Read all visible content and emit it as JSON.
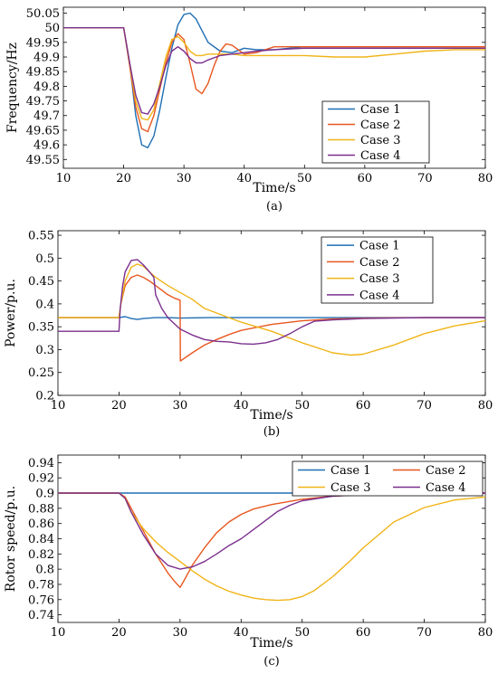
{
  "colors": {
    "case1": "#1f6fb5",
    "case2": "#e8571f",
    "case3": "#f0b418",
    "case4": "#7b2f8e"
  },
  "chart_data": [
    {
      "type": "line",
      "caption": "(a)",
      "xlabel": "Time/s",
      "ylabel": "Frequency/Hz",
      "xlim": [
        10,
        80
      ],
      "ylim": [
        49.52,
        50.07
      ],
      "xticks": [
        10,
        20,
        30,
        40,
        50,
        60,
        70,
        80
      ],
      "yticks": [
        49.55,
        49.6,
        49.65,
        49.7,
        49.75,
        49.8,
        49.85,
        49.9,
        49.95,
        50,
        50.05
      ],
      "yticklabels": [
        "49.55",
        "49.6",
        "49.65",
        "49.7",
        "49.75",
        "49.8",
        "49.85",
        "49.9",
        "49.95",
        "50",
        "50.05"
      ],
      "legend": {
        "placement": "bottom-right",
        "columns": 1,
        "entries": [
          "Case 1",
          "Case 2",
          "Case 3",
          "Case 4"
        ]
      },
      "series": [
        {
          "name": "Case 1",
          "color_key": "case1",
          "x": [
            10,
            20,
            21,
            22,
            23,
            24,
            25,
            26,
            27,
            28,
            29,
            30,
            31,
            32,
            33,
            34,
            36,
            38,
            40,
            42,
            45,
            50,
            60,
            70,
            80
          ],
          "y": [
            50,
            50,
            49.88,
            49.7,
            49.6,
            49.59,
            49.63,
            49.72,
            49.83,
            49.93,
            50.01,
            50.045,
            50.05,
            50.03,
            49.99,
            49.95,
            49.92,
            49.915,
            49.93,
            49.925,
            49.925,
            49.935,
            49.935,
            49.935,
            49.935
          ]
        },
        {
          "name": "Case 2",
          "color_key": "case2",
          "x": [
            10,
            20,
            21,
            22,
            23,
            24,
            25,
            26,
            27,
            28,
            29,
            30,
            31,
            32,
            33,
            34,
            35,
            36,
            37,
            38,
            40,
            42,
            45,
            50,
            60,
            70,
            80
          ],
          "y": [
            50,
            50,
            49.87,
            49.73,
            49.655,
            49.645,
            49.7,
            49.79,
            49.88,
            49.95,
            49.98,
            49.96,
            49.88,
            49.79,
            49.775,
            49.81,
            49.87,
            49.92,
            49.945,
            49.94,
            49.91,
            49.915,
            49.935,
            49.935,
            49.935,
            49.935,
            49.935
          ]
        },
        {
          "name": "Case 3",
          "color_key": "case3",
          "x": [
            10,
            20,
            21,
            22,
            23,
            24,
            25,
            26,
            27,
            28,
            29,
            30,
            31,
            32,
            33,
            34,
            36,
            38,
            40,
            45,
            50,
            55,
            60,
            65,
            70,
            75,
            80
          ],
          "y": [
            50,
            50,
            49.88,
            49.75,
            49.69,
            49.685,
            49.72,
            49.81,
            49.9,
            49.96,
            49.97,
            49.95,
            49.92,
            49.905,
            49.905,
            49.91,
            49.91,
            49.91,
            49.905,
            49.905,
            49.905,
            49.9,
            49.9,
            49.91,
            49.92,
            49.925,
            49.925
          ]
        },
        {
          "name": "Case 4",
          "color_key": "case4",
          "x": [
            10,
            20,
            21,
            22,
            23,
            24,
            25,
            26,
            27,
            28,
            29,
            30,
            31,
            32,
            33,
            34,
            36,
            38,
            40,
            42,
            45,
            50,
            60,
            70,
            80
          ],
          "y": [
            50,
            50,
            49.88,
            49.77,
            49.71,
            49.705,
            49.74,
            49.8,
            49.87,
            49.92,
            49.935,
            49.92,
            49.895,
            49.88,
            49.88,
            49.89,
            49.905,
            49.91,
            49.915,
            49.92,
            49.925,
            49.93,
            49.93,
            49.93,
            49.93
          ]
        }
      ]
    },
    {
      "type": "line",
      "caption": "(b)",
      "xlabel": "Time/s",
      "ylabel": "Power/p.u.",
      "xlim": [
        10,
        80
      ],
      "ylim": [
        0.2,
        0.56
      ],
      "xticks": [
        10,
        20,
        30,
        40,
        50,
        60,
        70,
        80
      ],
      "yticks": [
        0.2,
        0.25,
        0.3,
        0.35,
        0.4,
        0.45,
        0.5,
        0.55
      ],
      "yticklabels": [
        "0.2",
        "0.25",
        "0.3",
        "0.35",
        "0.4",
        "0.45",
        "0.5",
        "0.55"
      ],
      "legend": {
        "placement": "top-right",
        "columns": 1,
        "entries": [
          "Case 1",
          "Case 2",
          "Case 3",
          "Case 4"
        ]
      },
      "series": [
        {
          "name": "Case 1",
          "color_key": "case1",
          "x": [
            10,
            20,
            21,
            22,
            23,
            24,
            26,
            28,
            30,
            35,
            40,
            50,
            60,
            70,
            80
          ],
          "y": [
            0.37,
            0.37,
            0.372,
            0.368,
            0.366,
            0.368,
            0.37,
            0.37,
            0.369,
            0.37,
            0.37,
            0.37,
            0.37,
            0.37,
            0.37
          ]
        },
        {
          "name": "Case 2",
          "color_key": "case2",
          "x": [
            10,
            20,
            20.3,
            21,
            22,
            23,
            24,
            25,
            26,
            27,
            28,
            29,
            30,
            30.05,
            32,
            34,
            36,
            38,
            40,
            45,
            50,
            55,
            60,
            70,
            80
          ],
          "y": [
            0.37,
            0.37,
            0.4,
            0.44,
            0.458,
            0.463,
            0.458,
            0.45,
            0.44,
            0.43,
            0.42,
            0.413,
            0.408,
            0.275,
            0.293,
            0.31,
            0.322,
            0.333,
            0.342,
            0.355,
            0.363,
            0.367,
            0.369,
            0.37,
            0.37
          ]
        },
        {
          "name": "Case 3",
          "color_key": "case3",
          "x": [
            10,
            20,
            20.3,
            21,
            22,
            23,
            24,
            25,
            26,
            28,
            30,
            32,
            34,
            36,
            38,
            40,
            45,
            50,
            55,
            58,
            60,
            65,
            70,
            75,
            80
          ],
          "y": [
            0.37,
            0.37,
            0.4,
            0.45,
            0.48,
            0.487,
            0.482,
            0.47,
            0.458,
            0.44,
            0.425,
            0.41,
            0.39,
            0.38,
            0.37,
            0.36,
            0.34,
            0.315,
            0.293,
            0.288,
            0.29,
            0.31,
            0.335,
            0.352,
            0.363
          ]
        },
        {
          "name": "Case 4",
          "color_key": "case4",
          "x": [
            10,
            20,
            20.2,
            20.6,
            21,
            22,
            23,
            24,
            25,
            25.7,
            26,
            27,
            28,
            30,
            32,
            34,
            36,
            38,
            40,
            42,
            44,
            46,
            48,
            50,
            52,
            55,
            60,
            70,
            80
          ],
          "y": [
            0.34,
            0.34,
            0.39,
            0.44,
            0.47,
            0.495,
            0.497,
            0.485,
            0.47,
            0.458,
            0.42,
            0.39,
            0.37,
            0.345,
            0.332,
            0.322,
            0.318,
            0.317,
            0.313,
            0.312,
            0.315,
            0.322,
            0.335,
            0.35,
            0.362,
            0.365,
            0.368,
            0.37,
            0.37
          ]
        }
      ]
    },
    {
      "type": "line",
      "caption": "(c)",
      "xlabel": "Time/s",
      "ylabel": "Rotor speed/p.u.",
      "xlim": [
        10,
        80
      ],
      "ylim": [
        0.73,
        0.95
      ],
      "xticks": [
        10,
        20,
        30,
        40,
        50,
        60,
        70,
        80
      ],
      "yticks": [
        0.74,
        0.76,
        0.78,
        0.8,
        0.82,
        0.84,
        0.86,
        0.88,
        0.9,
        0.92,
        0.94
      ],
      "yticklabels": [
        "0.74",
        "0.76",
        "0.78",
        "0.8",
        "0.82",
        "0.84",
        "0.86",
        "0.88",
        "0.9",
        "0.92",
        "0.94"
      ],
      "legend": {
        "placement": "top-right",
        "columns": 2,
        "entries": [
          "Case 1",
          "Case 2",
          "Case 3",
          "Case 4"
        ]
      },
      "series": [
        {
          "name": "Case 1",
          "color_key": "case1",
          "x": [
            10,
            20,
            30,
            40,
            50,
            60,
            70,
            80
          ],
          "y": [
            0.9,
            0.9,
            0.9,
            0.9,
            0.9,
            0.9,
            0.9,
            0.9
          ]
        },
        {
          "name": "Case 2",
          "color_key": "case2",
          "x": [
            10,
            20,
            21,
            22,
            24,
            26,
            28,
            29,
            30,
            31,
            32,
            34,
            36,
            38,
            40,
            42,
            45,
            50,
            55,
            60,
            70,
            80
          ],
          "y": [
            0.9,
            0.9,
            0.895,
            0.88,
            0.85,
            0.82,
            0.795,
            0.785,
            0.776,
            0.79,
            0.805,
            0.828,
            0.848,
            0.862,
            0.872,
            0.879,
            0.885,
            0.892,
            0.896,
            0.898,
            0.899,
            0.9
          ]
        },
        {
          "name": "Case 3",
          "color_key": "case3",
          "x": [
            10,
            20,
            21,
            22,
            24,
            26,
            28,
            30,
            32,
            34,
            36,
            38,
            40,
            42,
            44,
            46,
            48,
            50,
            52,
            55,
            58,
            60,
            65,
            70,
            75,
            80
          ],
          "y": [
            0.9,
            0.9,
            0.893,
            0.875,
            0.853,
            0.836,
            0.822,
            0.81,
            0.798,
            0.787,
            0.778,
            0.771,
            0.766,
            0.762,
            0.76,
            0.759,
            0.76,
            0.764,
            0.772,
            0.79,
            0.812,
            0.828,
            0.862,
            0.881,
            0.891,
            0.895
          ]
        },
        {
          "name": "Case 4",
          "color_key": "case4",
          "x": [
            10,
            20,
            21,
            22,
            24,
            26,
            28,
            30,
            32,
            34,
            36,
            38,
            40,
            42,
            44,
            46,
            48,
            50,
            55,
            60,
            70,
            80
          ],
          "y": [
            0.9,
            0.9,
            0.893,
            0.875,
            0.845,
            0.82,
            0.805,
            0.8,
            0.803,
            0.81,
            0.82,
            0.831,
            0.84,
            0.852,
            0.864,
            0.876,
            0.884,
            0.89,
            0.896,
            0.898,
            0.9,
            0.9
          ]
        }
      ]
    }
  ]
}
